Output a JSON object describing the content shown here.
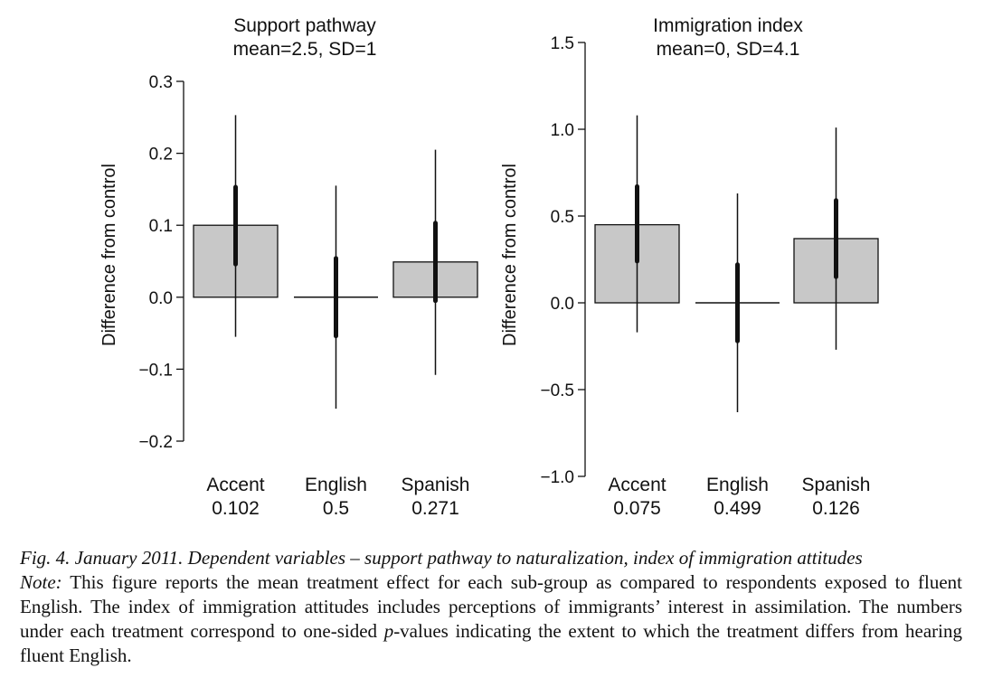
{
  "chart_data": [
    {
      "type": "bar",
      "title": "Support pathway",
      "subtitle": "mean=2.5, SD=1",
      "ylabel": "Difference from control",
      "ylim": [
        -0.2,
        0.3
      ],
      "yticks": [
        0.3,
        0.2,
        0.1,
        0.0,
        -0.1,
        -0.2
      ],
      "ytick_labels": [
        "0.3",
        "0.2",
        "0.1",
        "0.0",
        "−0.1",
        "−0.2"
      ],
      "categories": [
        "Accent",
        "English",
        "Spanish"
      ],
      "pvalues": [
        "0.102",
        "0.5",
        "0.271"
      ],
      "values": [
        0.1,
        0.0,
        0.049
      ],
      "ci_inner": [
        [
          0.046,
          0.153
        ],
        [
          -0.054,
          0.054
        ],
        [
          -0.005,
          0.103
        ]
      ],
      "ci_outer": [
        [
          -0.055,
          0.253
        ],
        [
          -0.155,
          0.155
        ],
        [
          -0.108,
          0.205
        ]
      ],
      "bar_color": "#c8c8c8"
    },
    {
      "type": "bar",
      "title": "Immigration index",
      "subtitle": "mean=0, SD=4.1",
      "ylabel": "Difference from control",
      "ylim": [
        -1.0,
        1.5
      ],
      "yticks": [
        1.5,
        1.0,
        0.5,
        0.0,
        -0.5,
        -1.0
      ],
      "ytick_labels": [
        "1.5",
        "1.0",
        "0.5",
        "0.0",
        "−0.5",
        "−1.0"
      ],
      "categories": [
        "Accent",
        "English",
        "Spanish"
      ],
      "pvalues": [
        "0.075",
        "0.499",
        "0.126"
      ],
      "values": [
        0.45,
        0.0,
        0.37
      ],
      "ci_inner": [
        [
          0.24,
          0.67
        ],
        [
          -0.22,
          0.22
        ],
        [
          0.15,
          0.59
        ]
      ],
      "ci_outer": [
        [
          -0.17,
          1.08
        ],
        [
          -0.63,
          0.63
        ],
        [
          -0.27,
          1.01
        ]
      ],
      "bar_color": "#c8c8c8"
    }
  ],
  "caption": {
    "fig_label": "Fig. 4.",
    "fig_title": "January 2011. Dependent variables – support pathway to naturalization, index of immigration attitudes",
    "note_label": "Note:",
    "note_text_1": "This figure reports the mean treatment effect for each sub-group as compared to respondents exposed to fluent English. The index of immigration attitudes includes perceptions of immigrants’ interest in assimilation. The numbers under each treatment correspond to one-sided",
    "note_p": "p",
    "note_text_2": "-values indicating the extent to which the treatment differs from hearing fluent English."
  }
}
